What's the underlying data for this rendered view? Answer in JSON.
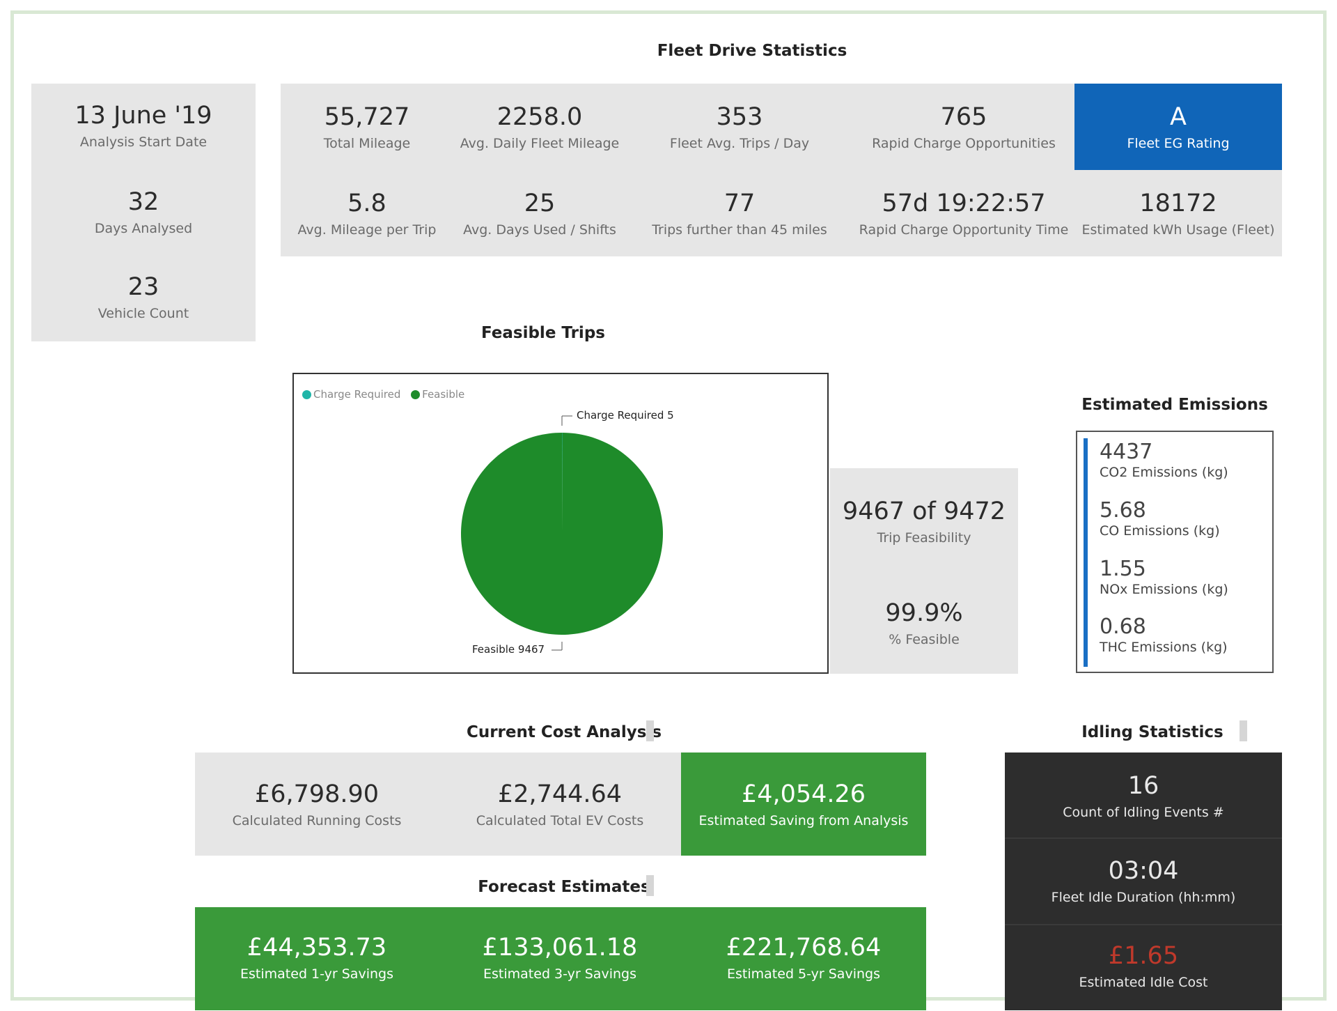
{
  "fleet_drive": {
    "title": "Fleet Drive Statistics",
    "left_stats": [
      {
        "value": "13 June '19",
        "label": "Analysis Start Date"
      },
      {
        "value": "32",
        "label": "Days Analysed"
      },
      {
        "value": "23",
        "label": "Vehicle Count"
      }
    ],
    "row1": [
      {
        "value": "55,727",
        "label": "Total Mileage"
      },
      {
        "value": "2258.0",
        "label": "Avg. Daily Fleet Mileage"
      },
      {
        "value": "353",
        "label": "Fleet Avg. Trips / Day"
      },
      {
        "value": "765",
        "label": "Rapid Charge Opportunities"
      }
    ],
    "rating": {
      "value": "A",
      "label": "Fleet EG Rating"
    },
    "row2": [
      {
        "value": "5.8",
        "label": "Avg. Mileage per Trip"
      },
      {
        "value": "25",
        "label": "Avg. Days Used / Shifts"
      },
      {
        "value": "77",
        "label": "Trips further than 45 miles"
      },
      {
        "value": "57d 19:22:57",
        "label": "Rapid Charge Opportunity Time"
      },
      {
        "value": "18172",
        "label": "Estimated kWh Usage (Fleet)"
      }
    ]
  },
  "feasible_trips": {
    "title": "Feasible Trips",
    "legend": [
      {
        "name": "Charge Required",
        "color": "#1fb5a8"
      },
      {
        "name": "Feasible",
        "color": "#1e8b2a"
      }
    ],
    "label_charge": "Charge Required 5",
    "label_feasible": "Feasible 9467",
    "feasibility": {
      "value": "9467 of 9472",
      "label": "Trip Feasibility"
    },
    "percent": {
      "value": "99.9%",
      "label": "% Feasible"
    }
  },
  "chart_data": {
    "type": "pie",
    "title": "Feasible Trips",
    "categories": [
      "Charge Required",
      "Feasible"
    ],
    "values": [
      5,
      9467
    ],
    "colors": [
      "#1fb5a8",
      "#1e8b2a"
    ],
    "legend": "top-left"
  },
  "emissions": {
    "title": "Estimated Emissions",
    "items": [
      {
        "value": "4437",
        "label": "CO2 Emissions (kg)"
      },
      {
        "value": "5.68",
        "label": "CO Emissions (kg)"
      },
      {
        "value": "1.55",
        "label": "NOx Emissions (kg)"
      },
      {
        "value": "0.68",
        "label": "THC Emissions (kg)"
      }
    ]
  },
  "cost": {
    "title": "Current Cost Analysis",
    "items": [
      {
        "value": "£6,798.90",
        "label": "Calculated Running Costs"
      },
      {
        "value": "£2,744.64",
        "label": "Calculated Total EV Costs"
      },
      {
        "value": "£4,054.26",
        "label": "Estimated Saving from Analysis"
      }
    ]
  },
  "forecast": {
    "title": "Forecast Estimates",
    "items": [
      {
        "value": "£44,353.73",
        "label": "Estimated 1-yr Savings"
      },
      {
        "value": "£133,061.18",
        "label": "Estimated 3-yr Savings"
      },
      {
        "value": "£221,768.64",
        "label": "Estimated 5-yr Savings"
      }
    ]
  },
  "idling": {
    "title": "Idling Statistics",
    "items": [
      {
        "value": "16",
        "label": "Count of Idling Events #"
      },
      {
        "value": "03:04",
        "label": "Fleet Idle Duration (hh:mm)"
      },
      {
        "value": "£1.65",
        "label": "Estimated Idle Cost"
      }
    ],
    "cost_color": "#c0392b"
  }
}
